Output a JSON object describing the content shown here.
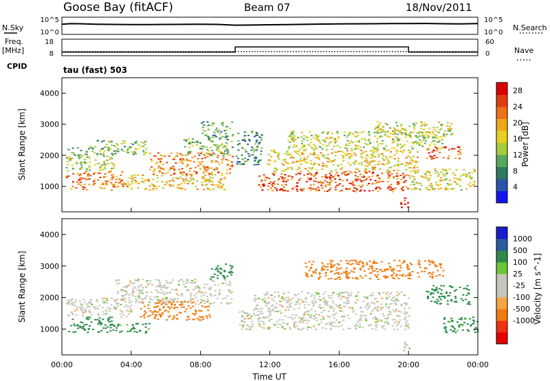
{
  "header": {
    "station": "Goose Bay (fitACF)",
    "beam": "Beam 07",
    "date": "18/Nov/2011",
    "cpid": "tau (fast) 503"
  },
  "strip_labels": {
    "nsky": "N.Sky",
    "freq": "Freq.",
    "freq_unit": "[MHz]",
    "cpid": "CPID",
    "nsearch": "N.Search",
    "nave": "Nave",
    "nsky_ticks": [
      "10^5",
      "10^0"
    ],
    "freq_ticks": [
      "18",
      "8"
    ],
    "nsearch_ticks": [
      "10^5",
      "10^0"
    ],
    "nave_ticks": [
      "60",
      "0"
    ]
  },
  "x_axis": {
    "label": "Time UT",
    "ticks": [
      "00:00",
      "04:00",
      "08:00",
      "12:00",
      "16:00",
      "20:00",
      "00:00"
    ]
  },
  "colors": {
    "power_scale": [
      "#1515f0",
      "#2a55a8",
      "#2e7a62",
      "#56a85a",
      "#a6cc3a",
      "#e8d020",
      "#f0a818",
      "#ee7018",
      "#e03c10",
      "#dd0000"
    ],
    "velocity_scale": [
      "#e80000",
      "#f03010",
      "#f27b10",
      "#f6a640",
      "#c6c6bc",
      "#c6c6bc",
      "#6ac636",
      "#2d8a4a",
      "#2b5aa0",
      "#1a1ad0"
    ]
  },
  "chart_data": [
    {
      "type": "line",
      "name": "N.Sky / N.Search",
      "x_hours": [
        0,
        0.5,
        1,
        2,
        3,
        4,
        5,
        6,
        7,
        8,
        9,
        10,
        11,
        12,
        13,
        14,
        15,
        16,
        17,
        18,
        19,
        20,
        21,
        22,
        23,
        24
      ],
      "values": [
        1500,
        2500,
        2400,
        1600,
        1300,
        1200,
        1200,
        1300,
        1400,
        1600,
        1300,
        700,
        800,
        1000,
        1200,
        1400,
        1800,
        2000,
        2200,
        2400,
        2600,
        2800,
        3000,
        2400,
        2000,
        2600
      ],
      "yscale": "log",
      "ylim": [
        1,
        100000
      ]
    },
    {
      "type": "line",
      "name": "Freq",
      "x_hours": [
        0,
        24
      ],
      "values": [
        10,
        10
      ],
      "ylim": [
        8,
        18
      ]
    },
    {
      "type": "line",
      "name": "Nave",
      "x_hours": [
        0,
        10,
        10,
        20,
        20,
        24
      ],
      "values": [
        10,
        10,
        32,
        32,
        10,
        10
      ],
      "ylim": [
        0,
        60
      ]
    },
    {
      "type": "heatmap",
      "parameter": "Power",
      "xlabel": "Time UT",
      "ylabel": "Slant Range [km]",
      "colorbar_label": "Power [dB]",
      "colorbar_ticks": [
        4,
        8,
        12,
        16,
        20,
        24,
        28
      ],
      "xlim": [
        0,
        24
      ],
      "ylim": [
        180,
        4500
      ],
      "yticks": [
        1000,
        2000,
        3000,
        4000
      ],
      "regions": [
        {
          "t0": 0.2,
          "t1": 3.5,
          "r0": 900,
          "r1": 1500,
          "level": 22
        },
        {
          "t0": 0.2,
          "t1": 3.0,
          "r0": 1500,
          "r1": 2000,
          "level": 14
        },
        {
          "t0": 0.3,
          "t1": 2.0,
          "r0": 2000,
          "r1": 2300,
          "level": 10
        },
        {
          "t0": 2.0,
          "t1": 5.0,
          "r0": 2000,
          "r1": 2500,
          "level": 12
        },
        {
          "t0": 3.5,
          "t1": 9.5,
          "r0": 900,
          "r1": 1400,
          "level": 18
        },
        {
          "t0": 5.0,
          "t1": 9.8,
          "r0": 1400,
          "r1": 2100,
          "level": 22
        },
        {
          "t0": 7.0,
          "t1": 9.8,
          "r0": 2000,
          "r1": 2600,
          "level": 12
        },
        {
          "t0": 8.0,
          "t1": 9.9,
          "r0": 2600,
          "r1": 3100,
          "level": 9
        },
        {
          "t0": 10.0,
          "t1": 11.5,
          "r0": 1700,
          "r1": 2800,
          "level": 8
        },
        {
          "t0": 11.3,
          "t1": 20.0,
          "r0": 850,
          "r1": 1500,
          "level": 24
        },
        {
          "t0": 11.8,
          "t1": 20.5,
          "r0": 1500,
          "r1": 2200,
          "level": 17
        },
        {
          "t0": 13.0,
          "t1": 22.0,
          "r0": 2200,
          "r1": 2800,
          "level": 14
        },
        {
          "t0": 18.0,
          "t1": 22.5,
          "r0": 2600,
          "r1": 3100,
          "level": 15
        },
        {
          "t0": 20.0,
          "t1": 23.8,
          "r0": 900,
          "r1": 1600,
          "level": 16
        },
        {
          "t0": 19.5,
          "t1": 20.0,
          "r0": 300,
          "r1": 650,
          "level": 28
        },
        {
          "t0": 21.0,
          "t1": 23.0,
          "r0": 1900,
          "r1": 2300,
          "level": 24
        }
      ]
    },
    {
      "type": "heatmap",
      "parameter": "Velocity",
      "xlabel": "Time UT",
      "ylabel": "Slant Range [km]",
      "colorbar_label": "Velocity [m s^-1]",
      "colorbar_ticks": [
        1000,
        500,
        100,
        25,
        -25,
        -100,
        -500,
        -1000
      ],
      "xlim": [
        0,
        24
      ],
      "ylim": [
        180,
        4500
      ],
      "yticks": [
        1000,
        2000,
        3000,
        4000
      ],
      "regions": [
        {
          "t0": 0.3,
          "t1": 3.0,
          "r0": 900,
          "r1": 1400,
          "level": 150
        },
        {
          "t0": 0.2,
          "t1": 4.0,
          "r0": 1400,
          "r1": 2000,
          "level": 0
        },
        {
          "t0": 3.0,
          "t1": 9.8,
          "r0": 1800,
          "r1": 2600,
          "level": 0
        },
        {
          "t0": 4.5,
          "t1": 8.5,
          "r0": 1300,
          "r1": 1900,
          "level": -150
        },
        {
          "t0": 3.0,
          "t1": 5.0,
          "r0": 900,
          "r1": 1200,
          "level": 120
        },
        {
          "t0": 8.5,
          "t1": 9.8,
          "r0": 2600,
          "r1": 3100,
          "level": 300
        },
        {
          "t0": 10.2,
          "t1": 20.0,
          "r0": 1000,
          "r1": 1600,
          "level": 0
        },
        {
          "t0": 11.0,
          "t1": 20.0,
          "r0": 1600,
          "r1": 2200,
          "level": 0
        },
        {
          "t0": 14.0,
          "t1": 22.0,
          "r0": 2600,
          "r1": 3200,
          "level": -200
        },
        {
          "t0": 19.6,
          "t1": 20.1,
          "r0": 300,
          "r1": 650,
          "level": 0
        },
        {
          "t0": 21.0,
          "t1": 23.5,
          "r0": 1800,
          "r1": 2400,
          "level": 300
        },
        {
          "t0": 22.0,
          "t1": 24.0,
          "r0": 900,
          "r1": 1400,
          "level": 120
        }
      ]
    }
  ]
}
